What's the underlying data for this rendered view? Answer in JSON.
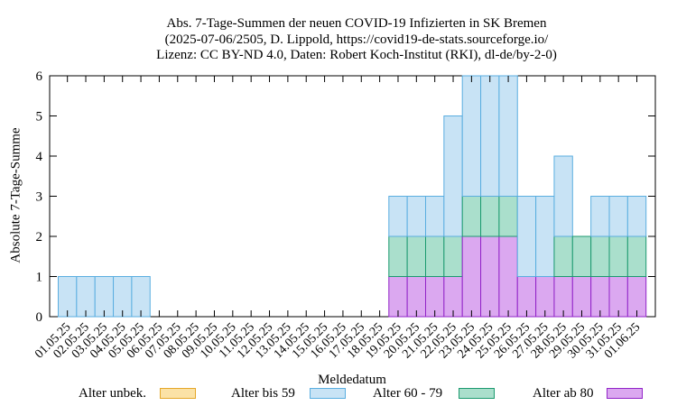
{
  "title_lines": [
    "Abs. 7-Tage-Summen der neuen COVID-19 Infizierten in SK Bremen",
    "(2025-07-06/2505, D. Lippold, https://covid19-de-stats.sourceforge.io/",
    "Lizenz: CC BY-ND 4.0, Daten: Robert Koch-Institut (RKI), dl-de/by-2-0)"
  ],
  "chart_data": {
    "type": "bar",
    "stacked": true,
    "xlabel": "Meldedatum",
    "ylabel": "Absolute 7-Tage-Summe",
    "ylim": [
      0,
      6
    ],
    "yticks": [
      0,
      1,
      2,
      3,
      4,
      5,
      6
    ],
    "categories": [
      "01.05.25",
      "02.05.25",
      "03.05.25",
      "04.05.25",
      "05.05.25",
      "06.05.25",
      "07.05.25",
      "08.05.25",
      "09.05.25",
      "10.05.25",
      "11.05.25",
      "12.05.25",
      "13.05.25",
      "14.05.25",
      "15.05.25",
      "16.05.25",
      "17.05.25",
      "18.05.25",
      "19.05.25",
      "20.05.25",
      "21.05.25",
      "22.05.25",
      "23.05.25",
      "24.05.25",
      "25.05.25",
      "26.05.25",
      "27.05.25",
      "28.05.25",
      "29.05.25",
      "30.05.25",
      "31.05.25",
      "01.06.25"
    ],
    "series": [
      {
        "name": "Alter unbek.",
        "fill": "#fbe2a6",
        "stroke": "#e5a82a",
        "values": [
          0,
          0,
          0,
          0,
          0,
          0,
          0,
          0,
          0,
          0,
          0,
          0,
          0,
          0,
          0,
          0,
          0,
          0,
          0,
          0,
          0,
          0,
          0,
          0,
          0,
          0,
          0,
          0,
          0,
          0,
          0,
          0
        ]
      },
      {
        "name": "Alter bis 59",
        "fill": "#c8e3f5",
        "stroke": "#5aaee0",
        "values": [
          1,
          1,
          1,
          1,
          1,
          0,
          0,
          0,
          0,
          0,
          0,
          0,
          0,
          0,
          0,
          0,
          0,
          0,
          1,
          1,
          1,
          3,
          3,
          3,
          3,
          2,
          2,
          2,
          0,
          1,
          1,
          1
        ]
      },
      {
        "name": "Alter 60 - 79",
        "fill": "#aadfcc",
        "stroke": "#1c9a6f",
        "values": [
          0,
          0,
          0,
          0,
          0,
          0,
          0,
          0,
          0,
          0,
          0,
          0,
          0,
          0,
          0,
          0,
          0,
          0,
          1,
          1,
          1,
          1,
          1,
          1,
          1,
          0,
          0,
          1,
          1,
          1,
          1,
          1
        ]
      },
      {
        "name": "Alter ab 80",
        "fill": "#dba8f0",
        "stroke": "#9224c8",
        "values": [
          0,
          0,
          0,
          0,
          0,
          0,
          0,
          0,
          0,
          0,
          0,
          0,
          0,
          0,
          0,
          0,
          0,
          0,
          1,
          1,
          1,
          1,
          2,
          2,
          2,
          1,
          1,
          1,
          1,
          1,
          1,
          1
        ]
      }
    ]
  }
}
